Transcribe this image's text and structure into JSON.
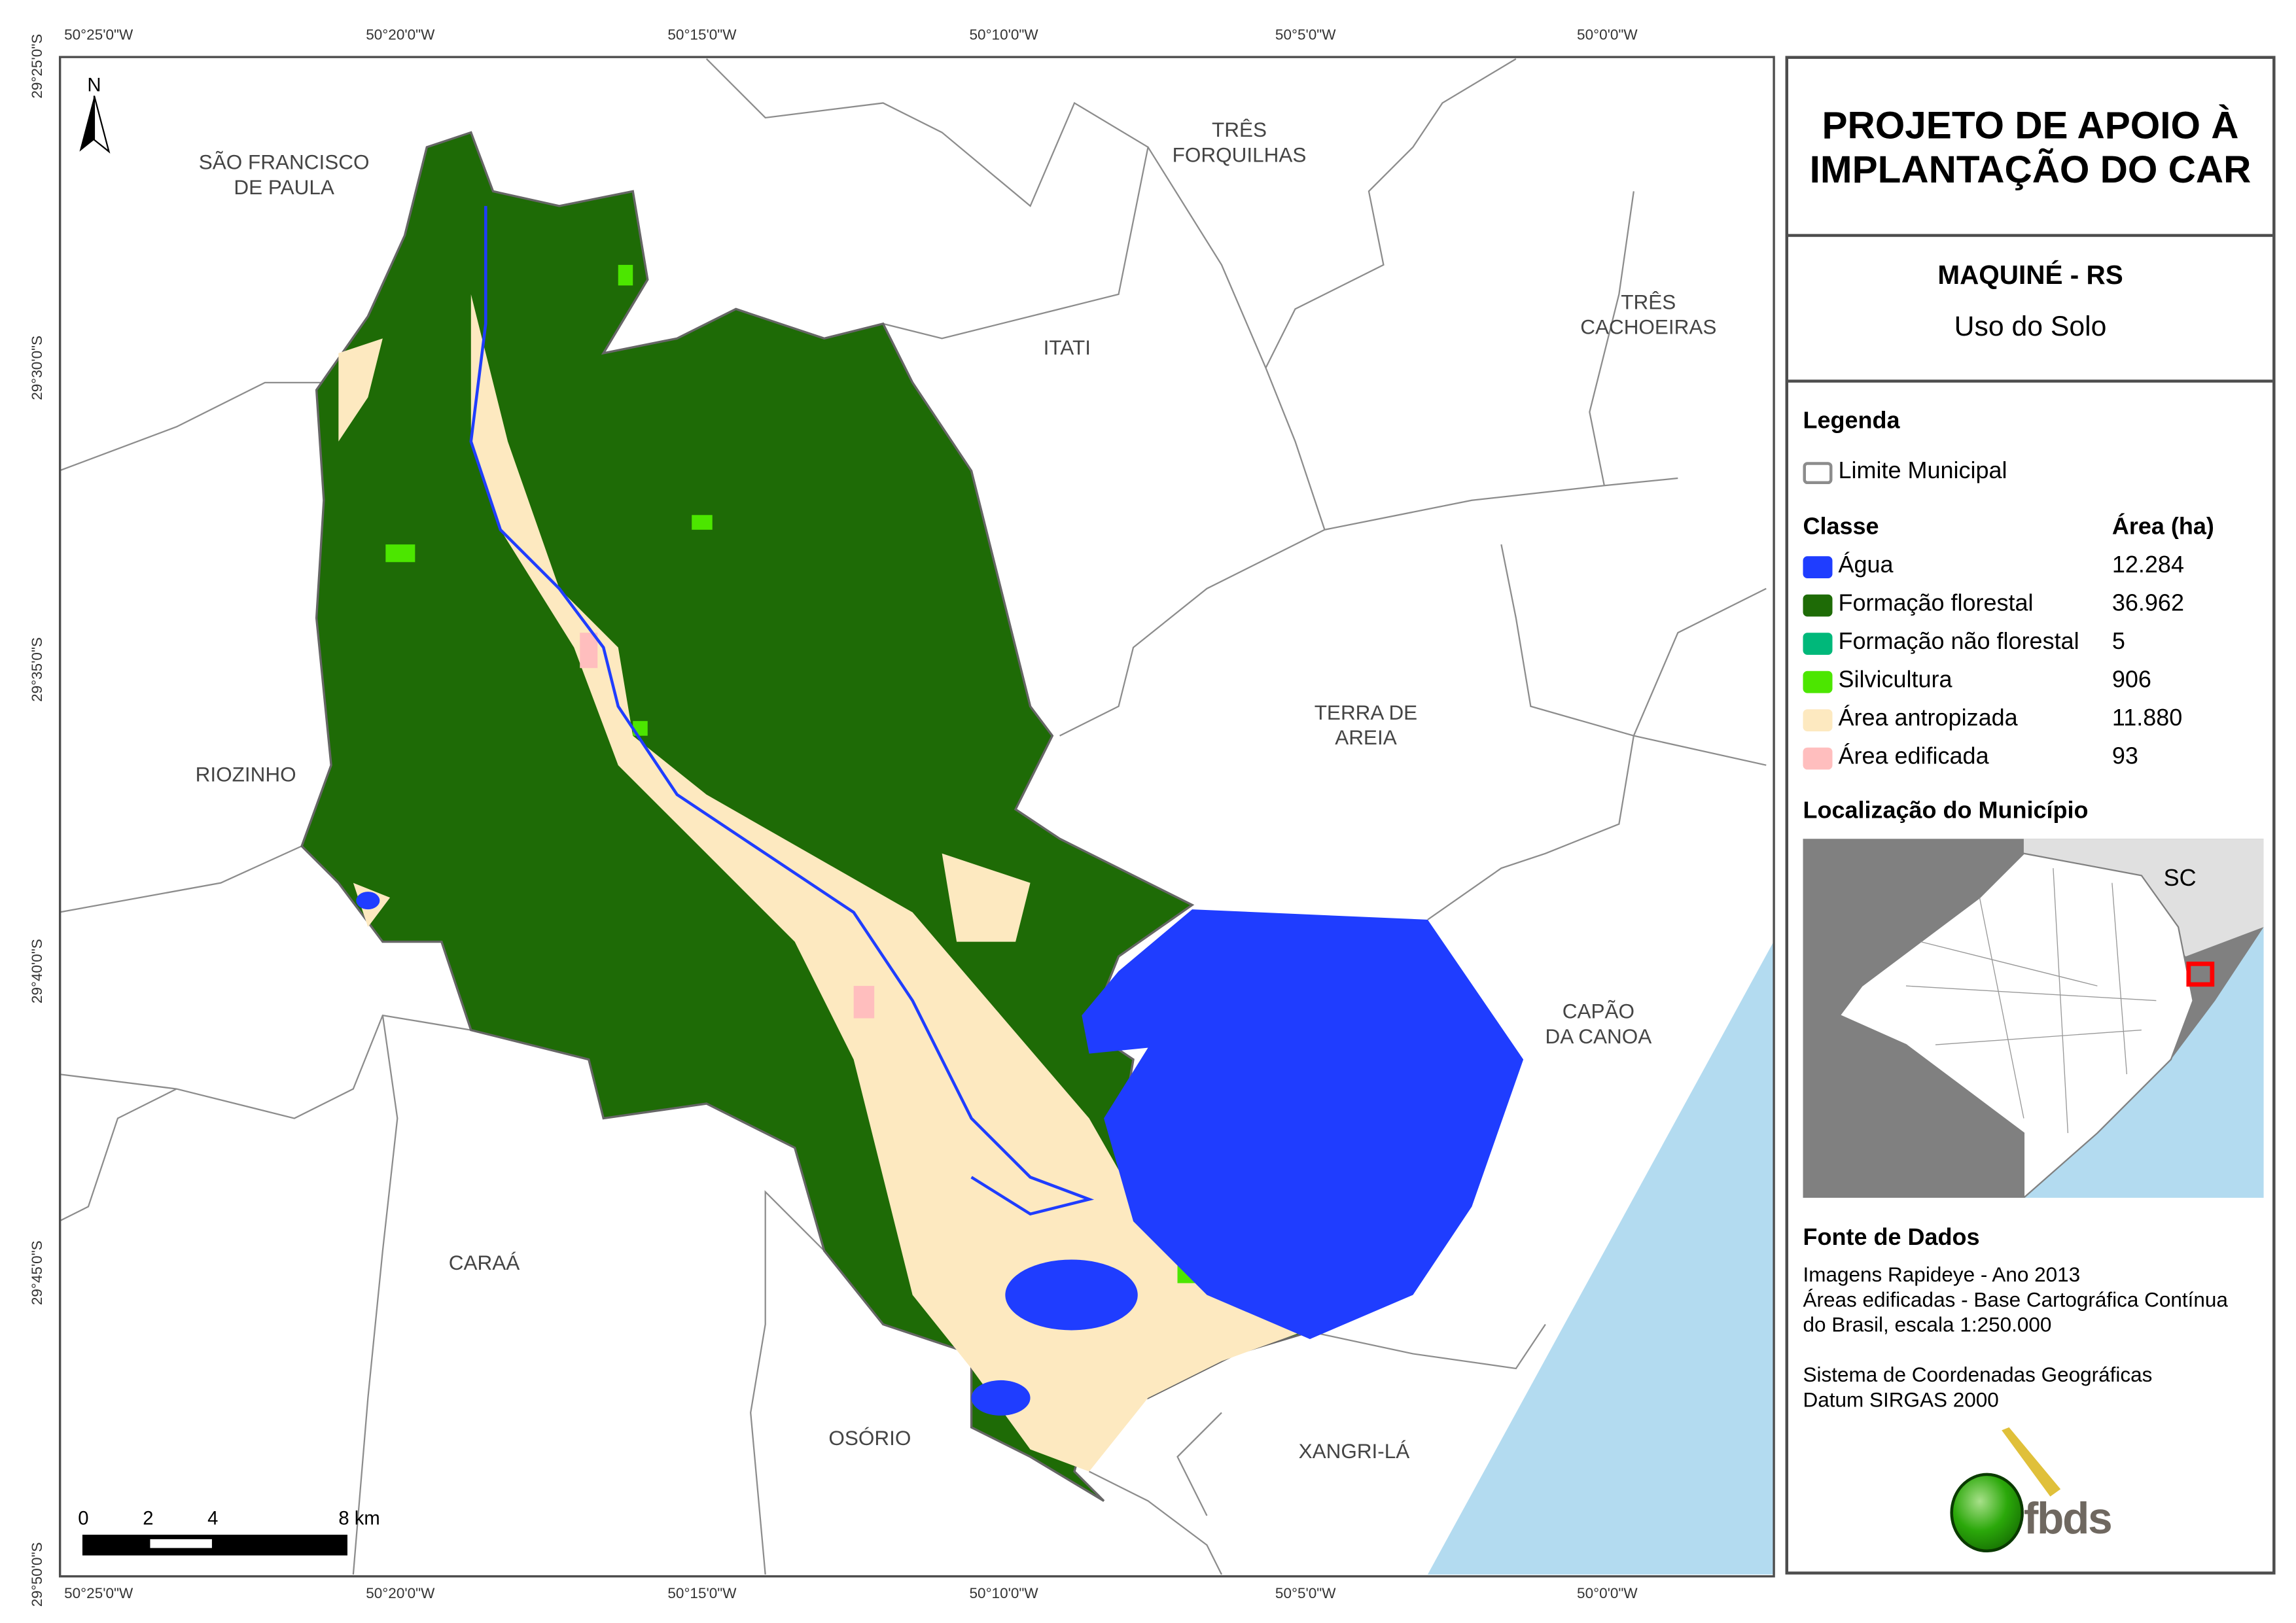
{
  "title": "PROJETO DE APOIO À IMPLANTAÇÃO DO CAR",
  "municipality": "MAQUINÉ - RS",
  "theme": "Uso do Solo",
  "legend": {
    "heading": "Legenda",
    "boundary_label": "Limite Municipal",
    "class_header": "Classe",
    "area_header": "Área (ha)",
    "classes": [
      {
        "label": "Água",
        "area": "12.284",
        "color": "#1f3dff"
      },
      {
        "label": "Formação florestal",
        "area": "36.962",
        "color": "#1e6b06"
      },
      {
        "label": "Formação não florestal",
        "area": "5",
        "color": "#00b87a"
      },
      {
        "label": "Silvicultura",
        "area": "906",
        "color": "#4ce600"
      },
      {
        "label": "Área antropizada",
        "area": "11.880",
        "color": "#fde9c0"
      },
      {
        "label": "Área edificada",
        "area": "93",
        "color": "#ffbebe"
      }
    ]
  },
  "locator": {
    "heading": "Localização do Município",
    "state_label": "SC",
    "highlight_color": "#ff0000"
  },
  "sources": {
    "heading": "Fonte de Dados",
    "lines": [
      "Imagens Rapideye - Ano 2013",
      "Áreas edificadas - Base Cartográfica Contínua",
      "do Brasil, escala 1:250.000"
    ],
    "crs": [
      "Sistema de Coordenadas Geográficas",
      "Datum SIRGAS 2000"
    ]
  },
  "logo_text": "fbds",
  "north_label": "N",
  "scale_bar": {
    "ticks": [
      "0",
      "2",
      "4",
      "8 km"
    ]
  },
  "longitude_ticks": [
    "50°25'0\"W",
    "50°20'0\"W",
    "50°15'0\"W",
    "50°10'0\"W",
    "50°5'0\"W",
    "50°0'0\"W"
  ],
  "latitude_ticks": [
    "29°25'0\"S",
    "29°30'0\"S",
    "29°35'0\"S",
    "29°40'0\"S",
    "29°45'0\"S",
    "29°50'0\"S"
  ],
  "neighbors": [
    "SÃO FRANCISCO\nDE PAULA",
    "TRÊS\nFORQUILHAS",
    "ITATI",
    "TRÊS\nCACHOEIRAS",
    "RIOZINHO",
    "TERRA DE\nAREIA",
    "CAPÃO\nDA CANOA",
    "CARAÁ",
    "OSÓRIO",
    "XANGRI-LÁ"
  ],
  "colors": {
    "ocean": "#b3dbf0",
    "boundary": "#8c8c8c",
    "frame": "#4d4d4d"
  }
}
